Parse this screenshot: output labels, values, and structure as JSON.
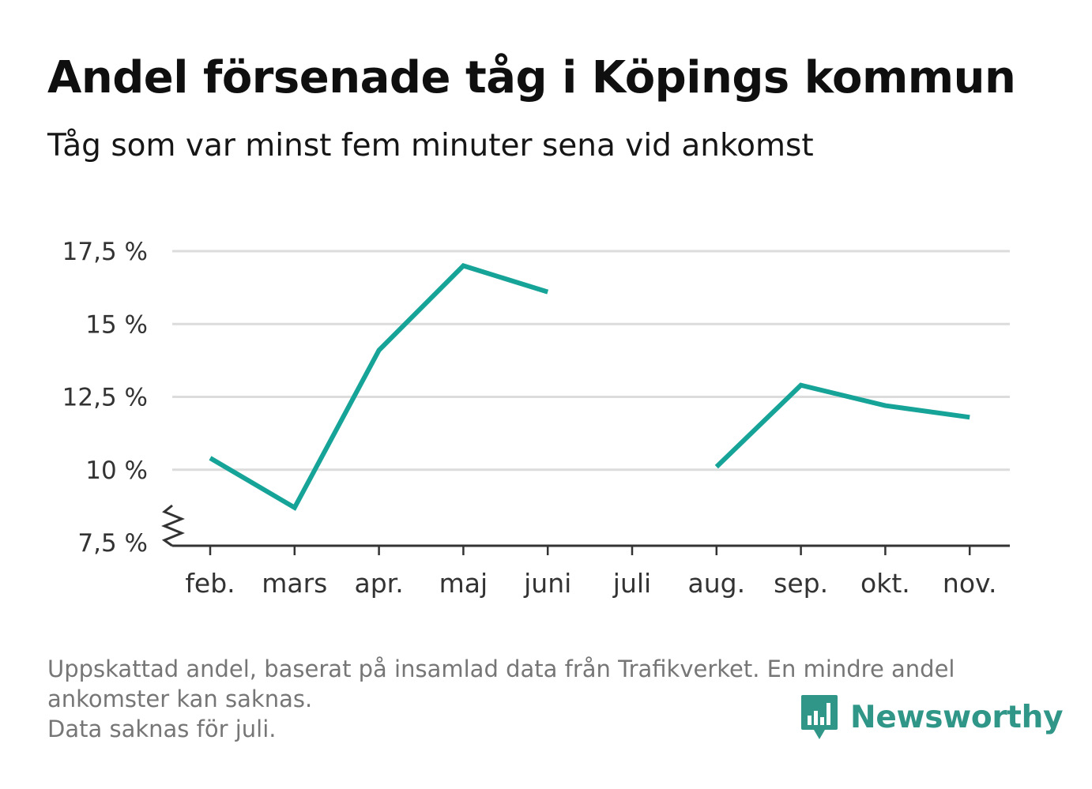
{
  "title": "Andel försenade tåg i Köpings kommun",
  "subtitle": "Tåg som var minst fem minuter sena vid ankomst",
  "footnote": {
    "line1": "Uppskattad andel, baserat på insamlad data från Trafikverket. En mindre andel",
    "line2": "ankomster kan saknas.",
    "line3": "Data saknas för juli."
  },
  "brand": {
    "name": "Newsworthy",
    "icon": "newsworthy-logo-icon",
    "color": "#2f9688"
  },
  "colors": {
    "line": "#16a398",
    "grid": "#dcdcdc",
    "axis": "#333333"
  },
  "chart_data": {
    "type": "line",
    "title": "Andel försenade tåg i Köpings kommun",
    "subtitle": "Tåg som var minst fem minuter sena vid ankomst",
    "categories": [
      "feb.",
      "mars",
      "apr.",
      "maj",
      "juni",
      "juli",
      "aug.",
      "sep.",
      "okt.",
      "nov."
    ],
    "series": [
      {
        "values": [
          10.4,
          8.7,
          14.1,
          17.0,
          16.1,
          null,
          10.1,
          12.9,
          12.2,
          11.8
        ]
      }
    ],
    "yticks": [
      7.5,
      10,
      12.5,
      15,
      17.5
    ],
    "ytick_labels": [
      "7,5 %",
      "10 %",
      "12,5 %",
      "15 %",
      "17,5 %"
    ],
    "ylim": [
      7.5,
      17.5
    ],
    "y_axis_break": true,
    "grid": true,
    "legend": "none"
  }
}
